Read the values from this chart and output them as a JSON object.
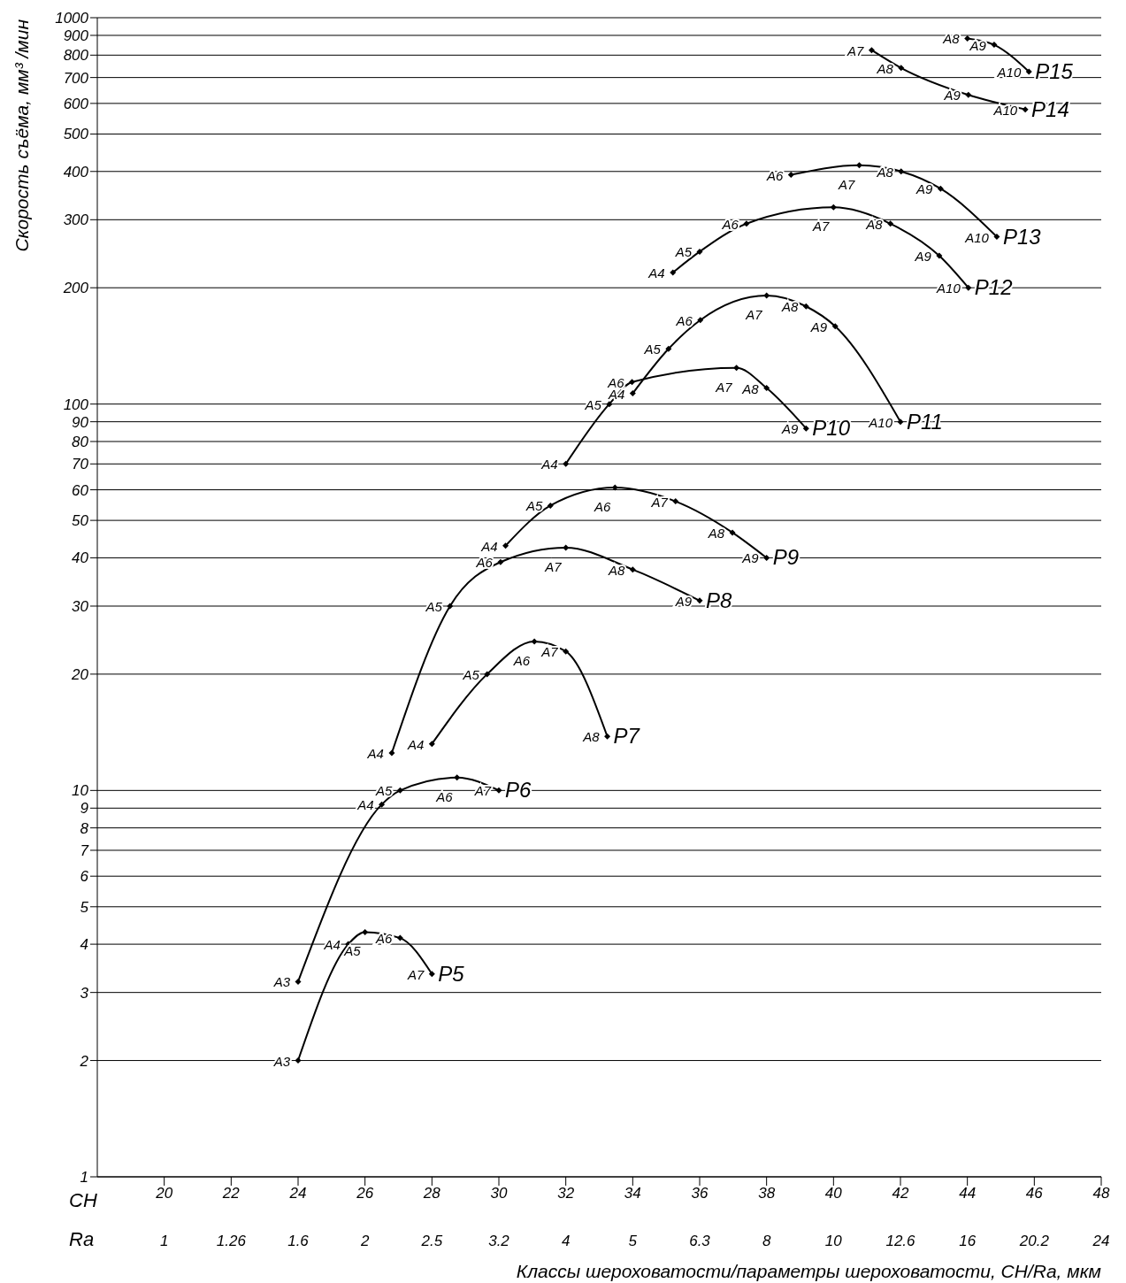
{
  "chart_data": {
    "type": "line",
    "ylabel": "Скорость съёма, мм³ /мин",
    "xlabel": "Классы шероховатости/параметры шероховатости, CH/Ra, мкм",
    "log": "y",
    "grid": "y",
    "legend": false,
    "marker": "diamond",
    "line_style": "solid",
    "xlim": [
      18,
      48
    ],
    "xticks": [
      20,
      22,
      24,
      26,
      28,
      30,
      32,
      34,
      36,
      38,
      40,
      42,
      44,
      46,
      48
    ],
    "ylim": [
      1,
      1000
    ],
    "yticks": [
      1,
      2,
      3,
      4,
      5,
      6,
      7,
      8,
      9,
      10,
      20,
      30,
      40,
      50,
      60,
      70,
      80,
      90,
      100,
      200,
      300,
      400,
      500,
      600,
      700,
      800,
      900,
      1000
    ],
    "annotations": [
      "CH",
      "Ra",
      "1",
      "1.26",
      "1.6",
      "2",
      "2.5",
      "3.2",
      "4",
      "5",
      "6.3",
      "8",
      "10",
      "12.6",
      "16",
      "20.2",
      "24"
    ],
    "series": [
      {
        "name": "P5",
        "color": "#000000",
        "x": [
          24,
          25.5,
          26,
          27.05,
          28
        ],
        "values": [
          2,
          4,
          4.3,
          4.15,
          3.35
        ],
        "value_labels": [
          "A3",
          "A4",
          "A5",
          "A6",
          "A7"
        ]
      },
      {
        "name": "P6",
        "color": "#000000",
        "x": [
          24,
          26.5,
          27.05,
          28.75,
          30
        ],
        "values": [
          3.2,
          9.2,
          10,
          10.8,
          10
        ],
        "value_labels": [
          "A3",
          "A4",
          "A5",
          "A6",
          "A7"
        ]
      },
      {
        "name": "P7",
        "color": "#000000",
        "x": [
          28,
          29.65,
          31.06,
          32,
          33.24
        ],
        "values": [
          13.2,
          20,
          24.3,
          22.9,
          13.8
        ],
        "value_labels": [
          "A4",
          "A5",
          "A6",
          "A7",
          "A8"
        ]
      },
      {
        "name": "P8",
        "color": "#000000",
        "x": [
          26.8,
          28.54,
          30.05,
          32,
          34,
          36
        ],
        "values": [
          12.5,
          30,
          39,
          42.5,
          37.3,
          31
        ],
        "value_labels": [
          "A4",
          "A5",
          "A6",
          "A7",
          "A8",
          "A9"
        ]
      },
      {
        "name": "P9",
        "color": "#000000",
        "x": [
          30.2,
          31.54,
          33.47,
          35.28,
          36.98,
          38
        ],
        "values": [
          43,
          54.6,
          60.8,
          56,
          46.5,
          40
        ],
        "value_labels": [
          "A4",
          "A5",
          "A6",
          "A7",
          "A8",
          "A9"
        ]
      },
      {
        "name": "P10",
        "color": "#000000",
        "x": [
          32,
          33.3,
          33.98,
          37.1,
          38,
          39.18
        ],
        "values": [
          70,
          100,
          114,
          124,
          110,
          86.5
        ],
        "value_labels": [
          "A4",
          "A5",
          "A6",
          "A7",
          "A8",
          "A9"
        ]
      },
      {
        "name": "P11",
        "color": "#000000",
        "x": [
          34,
          35.07,
          36.02,
          38,
          39.18,
          40.05,
          42
        ],
        "values": [
          106.6,
          139,
          165,
          191,
          179,
          159,
          90
        ],
        "value_labels": [
          "A4",
          "A5",
          "A6",
          "A7",
          "A8",
          "A9",
          "A10"
        ]
      },
      {
        "name": "P12",
        "color": "#000000",
        "x": [
          35.2,
          36,
          37.4,
          40,
          41.7,
          43.16,
          44.03
        ],
        "values": [
          219,
          248,
          293,
          323,
          293,
          242,
          200
        ],
        "value_labels": [
          "A4",
          "A5",
          "A6",
          "A7",
          "A8",
          "A9",
          "A10"
        ]
      },
      {
        "name": "P13",
        "color": "#000000",
        "x": [
          38.73,
          40.77,
          42.02,
          43.2,
          44.88
        ],
        "values": [
          392,
          415,
          400,
          361,
          271
        ],
        "value_labels": [
          "A6",
          "A7",
          "A8",
          "A9",
          "A10"
        ]
      },
      {
        "name": "P14",
        "color": "#000000",
        "x": [
          41.14,
          42.02,
          44.03,
          45.73
        ],
        "values": [
          824,
          741,
          631,
          579
        ],
        "value_labels": [
          "A7",
          "A8",
          "A9",
          "A10"
        ]
      },
      {
        "name": "P15",
        "color": "#000000",
        "x": [
          44,
          44.8,
          45.84
        ],
        "values": [
          884,
          851,
          725
        ],
        "value_labels": [
          "A8",
          "A9",
          "A10"
        ]
      }
    ]
  }
}
